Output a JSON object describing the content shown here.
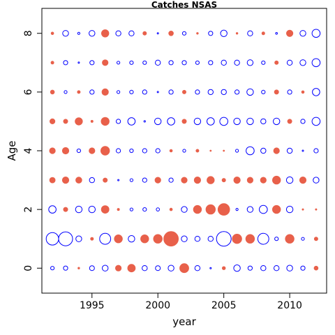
{
  "chart_data": {
    "type": "scatter",
    "subtype": "bubble",
    "title": "Catches NSAS",
    "xlabel": "year",
    "ylabel": "Age",
    "xlim": [
      1991.2,
      2012.8
    ],
    "ylim": [
      -0.85,
      8.85
    ],
    "x_ticks": [
      1995,
      2000,
      2005,
      2010
    ],
    "y_ticks": [
      0,
      2,
      4,
      6,
      8
    ],
    "grid": false,
    "legend": "none",
    "colors": {
      "positive": "#e8604a",
      "negative": "#0000ff"
    },
    "encoding": "bubble radius = magnitude (0-1); sign: positive = filled red, negative = open blue",
    "years": [
      1992,
      1993,
      1994,
      1995,
      1996,
      1997,
      1998,
      1999,
      2000,
      2001,
      2002,
      2003,
      2004,
      2005,
      2006,
      2007,
      2008,
      2009,
      2010,
      2011,
      2012
    ],
    "ages": [
      0,
      1,
      2,
      3,
      4,
      5,
      6,
      7,
      8
    ],
    "values": [
      [
        -0.25,
        -0.3,
        0.12,
        -0.33,
        -0.4,
        0.4,
        0.52,
        -0.35,
        -0.33,
        -0.4,
        0.62,
        -0.35,
        -0.08,
        0.22,
        -0.45,
        -0.3,
        -0.35,
        -0.35,
        -0.4,
        -0.3,
        0.28
      ],
      [
        -0.85,
        -0.95,
        -0.4,
        0.2,
        -0.75,
        0.55,
        -0.45,
        0.55,
        0.6,
        1.0,
        -0.4,
        -0.35,
        -0.35,
        -1.0,
        0.65,
        0.6,
        -0.75,
        -0.25,
        0.6,
        -0.2,
        0.25
      ],
      [
        -0.5,
        0.3,
        -0.45,
        -0.45,
        0.52,
        0.15,
        -0.2,
        -0.25,
        -0.22,
        0.18,
        -0.4,
        0.55,
        0.65,
        0.8,
        -0.15,
        -0.4,
        -0.55,
        0.55,
        -0.45,
        0.1,
        0.1
      ],
      [
        0.38,
        0.45,
        0.42,
        -0.35,
        0.3,
        -0.05,
        -0.2,
        -0.3,
        0.4,
        -0.3,
        0.4,
        0.45,
        0.5,
        0.25,
        0.45,
        0.4,
        0.4,
        0.55,
        -0.45,
        0.45,
        -0.4
      ],
      [
        0.4,
        0.45,
        -0.25,
        0.4,
        0.6,
        -0.3,
        -0.25,
        -0.3,
        -0.3,
        0.18,
        -0.2,
        0.2,
        0.05,
        0.0,
        -0.2,
        -0.55,
        -0.35,
        0.4,
        -0.35,
        -0.08,
        -0.3
      ],
      [
        0.35,
        0.3,
        0.5,
        0.15,
        0.55,
        -0.3,
        -0.5,
        -0.1,
        -0.45,
        -0.5,
        0.3,
        -0.45,
        -0.5,
        -0.55,
        -0.45,
        -0.45,
        -0.35,
        -0.45,
        0.3,
        -0.3,
        -0.55
      ],
      [
        0.28,
        -0.2,
        0.2,
        -0.3,
        0.45,
        -0.2,
        -0.25,
        -0.3,
        -0.05,
        -0.3,
        0.25,
        -0.3,
        -0.35,
        -0.35,
        -0.3,
        -0.45,
        -0.25,
        0.3,
        -0.3,
        0.18,
        -0.5
      ],
      [
        0.2,
        -0.3,
        -0.08,
        -0.3,
        0.4,
        -0.2,
        -0.25,
        -0.25,
        -0.35,
        -0.3,
        -0.3,
        -0.25,
        -0.3,
        -0.35,
        -0.35,
        -0.4,
        -0.25,
        0.25,
        -0.35,
        -0.4,
        -0.55
      ],
      [
        0.18,
        -0.4,
        -0.15,
        -0.4,
        0.5,
        -0.35,
        -0.35,
        0.25,
        -0.08,
        0.32,
        -0.25,
        0.12,
        -0.3,
        -0.45,
        0.12,
        -0.35,
        0.2,
        -0.12,
        0.45,
        -0.4,
        -0.55
      ]
    ]
  }
}
